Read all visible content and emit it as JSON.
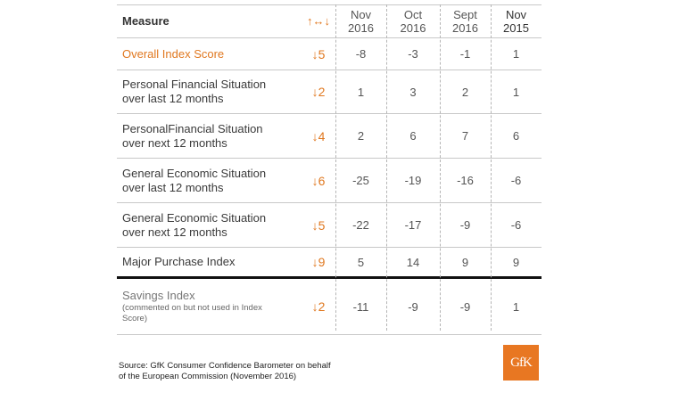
{
  "header": {
    "measure": "Measure",
    "arrow_legend": "↑↔↓",
    "col1": [
      "Nov",
      "2016"
    ],
    "col2": [
      "Oct",
      "2016"
    ],
    "col3": [
      "Sept",
      "2016"
    ],
    "col4": [
      "Nov",
      "2015"
    ]
  },
  "rows": [
    {
      "label": [
        "Overall Index Score"
      ],
      "arrow": "↓5",
      "values": [
        "-8",
        "-3",
        "-1",
        "1"
      ]
    },
    {
      "label": [
        "Personal Financial Situation",
        "over last 12 months"
      ],
      "arrow": "↓2",
      "values": [
        "1",
        "3",
        "2",
        "1"
      ]
    },
    {
      "label": [
        "PersonalFinancial Situation",
        "over next 12 months"
      ],
      "arrow": "↓4",
      "values": [
        "2",
        "6",
        "7",
        "6"
      ]
    },
    {
      "label": [
        "General Economic Situation",
        "over last 12 months"
      ],
      "arrow": "↓6",
      "values": [
        "-25",
        "-19",
        "-16",
        "-6"
      ]
    },
    {
      "label": [
        "General Economic Situation",
        "over next 12 months"
      ],
      "arrow": "↓5",
      "values": [
        "-22",
        "-17",
        "-9",
        "-6"
      ]
    },
    {
      "label": [
        "Major Purchase Index"
      ],
      "arrow": "↓9",
      "values": [
        "5",
        "14",
        "9",
        "9"
      ]
    },
    {
      "label": [
        "Savings Index"
      ],
      "note": [
        "(commented on but not used in Index",
        "Score)"
      ],
      "arrow": "↓2",
      "values": [
        "-11",
        "-9",
        "-9",
        "1"
      ]
    }
  ],
  "footer": {
    "line1": "Source: GfK Consumer Confidence Barometer on behalf",
    "line2": "of the European Commission (November 2016)"
  },
  "logo": {
    "text": "GfK",
    "color": "#e87722"
  },
  "colors": {
    "accent": "#e07820"
  }
}
